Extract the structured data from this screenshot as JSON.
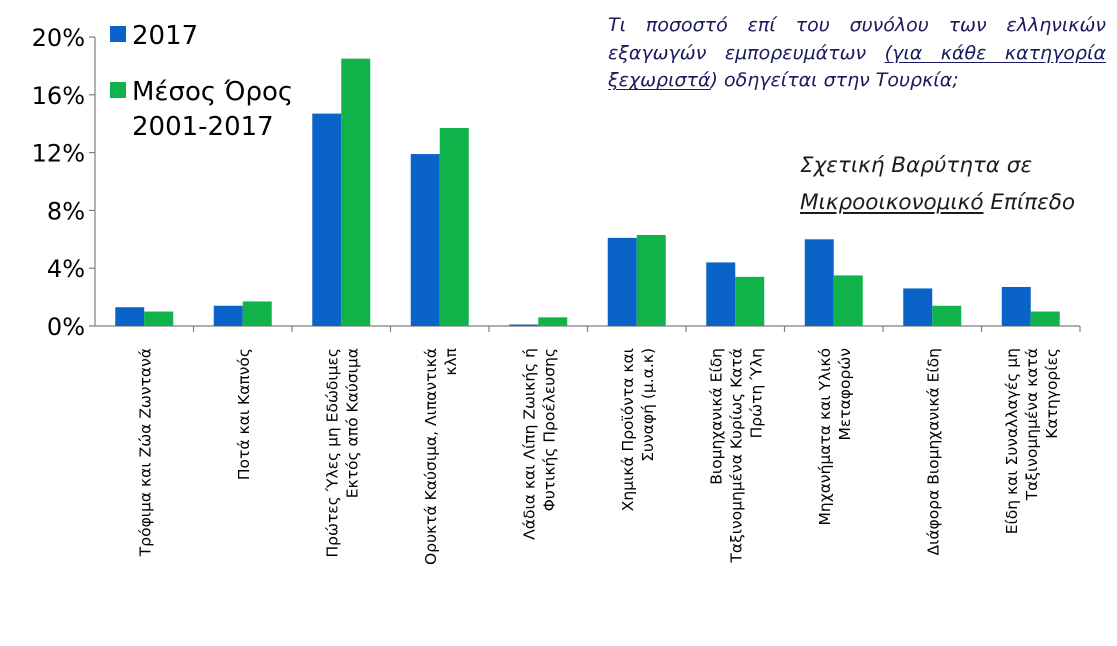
{
  "chart_data": {
    "type": "bar",
    "categories": [
      [
        "Τρόφιμα και Ζώα Ζωντανά"
      ],
      [
        "Ποτά και Καπνός"
      ],
      [
        "Πρώτες Ύλες μη Εδώδιμες",
        "Εκτός από Καύσιμα"
      ],
      [
        "Ορυκτά Καύσιμα, Λιπαντικά",
        "κλπ"
      ],
      [
        "Λάδια και Λίπη Ζωικής ή",
        "Φυτικής Προέλευσης"
      ],
      [
        "Χημικά Προϊόντα και",
        "Συναφή (μ.α.κ)"
      ],
      [
        "Βιομηχανικά Είδη",
        "Ταξινομημένα Κυρίως Κατά",
        "Πρώτη Ύλη"
      ],
      [
        "Μηχανήματα και Υλικό",
        "Μεταφορών"
      ],
      [
        "Διάφορα Βιομηχανικά Είδη"
      ],
      [
        "Είδη και Συναλλαγές μη",
        "Ταξινομημένα κατά",
        "Κατηγορίες"
      ]
    ],
    "series": [
      {
        "name": "2017",
        "color": "#0a64c8",
        "values": [
          1.3,
          1.4,
          14.7,
          11.9,
          0.1,
          6.1,
          4.4,
          6.0,
          2.6,
          2.7
        ]
      },
      {
        "name": "Μέσος Όρος 2001-2017",
        "color": "#0fb34a",
        "values": [
          1.0,
          1.7,
          18.5,
          13.7,
          0.6,
          6.3,
          3.4,
          3.5,
          1.4,
          1.0
        ]
      }
    ],
    "legend_lines": [
      [
        "2017"
      ],
      [
        "Μέσος Όρος",
        "2001-2017"
      ]
    ],
    "yticks": [
      "0%",
      "4%",
      "8%",
      "12%",
      "16%",
      "20%"
    ],
    "ylim": [
      0,
      20
    ],
    "grid": false,
    "legend_position": "top-left"
  },
  "annotation": {
    "question_part1": "Τι ποσοστό επί του συνόλου των ελληνικών εξαγωγών εμπορευμάτων ",
    "question_underlined": "(για κάθε κατηγορία ξεχωριστά",
    "question_part2": ") οδηγείται στην Τουρκία;",
    "subtitle_line1": "Σχετική Βαρύτητα σε",
    "subtitle_underlined": "Μικροοικονομικό",
    "subtitle_rest": " Επίπεδο"
  }
}
